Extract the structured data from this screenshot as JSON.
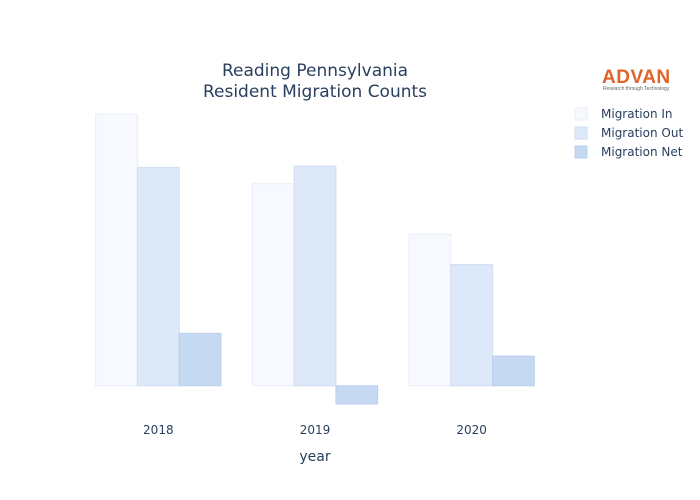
{
  "chart_data": {
    "type": "bar",
    "title_lines": [
      "Reading Pennsylvania",
      "Resident Migration Counts"
    ],
    "xlabel": "year",
    "ylabel": "",
    "categories": [
      "2018",
      "2019",
      "2020"
    ],
    "series": [
      {
        "name": "Migration In",
        "values": [
          4300,
          3200,
          2400
        ],
        "color": "#f7f9fe",
        "stroke": "#e9eef8"
      },
      {
        "name": "Migration Out",
        "values": [
          3460,
          3480,
          1920
        ],
        "color": "#dde8f8",
        "stroke": "#d2def2"
      },
      {
        "name": "Migration Net",
        "values": [
          830,
          -290,
          470
        ],
        "color": "#c6d9f2",
        "stroke": "#bcd0ee"
      }
    ],
    "ylim": [
      -400,
      4400
    ],
    "grid": false,
    "legend_position": "top-right"
  },
  "logo": {
    "word": "ADVAN",
    "tagline": "Research through Technology",
    "color": "#e2632a"
  }
}
